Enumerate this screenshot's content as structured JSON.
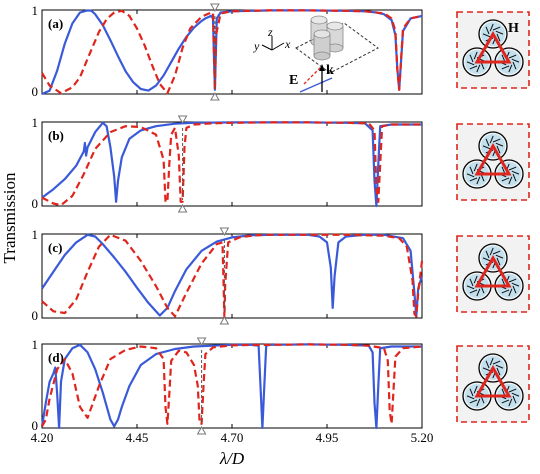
{
  "chart_data": {
    "type": "line",
    "xlabel": "λ/D",
    "ylabel": "Transmission",
    "xlim": [
      4.2,
      5.2
    ],
    "ylim": [
      0,
      1
    ],
    "x_ticks": [
      "4.20",
      "4.45",
      "4.70",
      "4.95",
      "5.20"
    ],
    "y_ticks": [
      "0",
      "1"
    ],
    "colors": {
      "solid": "#3a5bd9",
      "dashed": "#e0251d"
    },
    "panels": [
      {
        "label": "(a)",
        "markers_x": [
          4.655
        ],
        "series": [
          {
            "style": "solid",
            "x": [
              4.2,
              4.22,
              4.24,
              4.26,
              4.28,
              4.3,
              4.32,
              4.33,
              4.34,
              4.36,
              4.38,
              4.4,
              4.42,
              4.44,
              4.46,
              4.48,
              4.5,
              4.52,
              4.54,
              4.56,
              4.58,
              4.6,
              4.62,
              4.63,
              4.64,
              4.645,
              4.65,
              4.652,
              4.655,
              4.66,
              4.67,
              4.7,
              4.75,
              4.8,
              4.9,
              5.0,
              5.05,
              5.08,
              5.1,
              5.12,
              5.13,
              5.135,
              5.14,
              5.15,
              5.17,
              5.2
            ],
            "y": [
              0.0,
              0.04,
              0.28,
              0.6,
              0.84,
              0.97,
              0.995,
              0.99,
              0.95,
              0.82,
              0.64,
              0.45,
              0.27,
              0.14,
              0.06,
              0.04,
              0.1,
              0.22,
              0.38,
              0.54,
              0.68,
              0.79,
              0.87,
              0.9,
              0.92,
              0.93,
              0.9,
              0.5,
              0.05,
              0.9,
              0.97,
              0.985,
              0.99,
              0.995,
              0.995,
              0.99,
              0.985,
              0.97,
              0.95,
              0.88,
              0.7,
              0.3,
              0.05,
              0.75,
              0.9,
              0.93
            ]
          },
          {
            "style": "dashed",
            "x": [
              4.2,
              4.22,
              4.25,
              4.28,
              4.3,
              4.32,
              4.35,
              4.37,
              4.39,
              4.41,
              4.43,
              4.45,
              4.47,
              4.49,
              4.51,
              4.53,
              4.55,
              4.57,
              4.59,
              4.62,
              4.64,
              4.65,
              4.652,
              4.655,
              4.658,
              4.67,
              4.7,
              4.75,
              4.8,
              4.9,
              5.0,
              5.05,
              5.1,
              5.12,
              5.13,
              5.135,
              5.14,
              5.15,
              5.17,
              5.2
            ],
            "y": [
              0.25,
              0.1,
              0.01,
              0.08,
              0.2,
              0.42,
              0.74,
              0.89,
              0.97,
              0.99,
              0.93,
              0.78,
              0.58,
              0.34,
              0.12,
              0.01,
              0.22,
              0.55,
              0.78,
              0.92,
              0.96,
              0.97,
              0.6,
              0.05,
              0.7,
              0.96,
              0.985,
              0.99,
              0.995,
              0.995,
              0.99,
              0.985,
              0.96,
              0.9,
              0.75,
              0.3,
              0.05,
              0.78,
              0.9,
              0.93
            ]
          }
        ]
      },
      {
        "label": "(b)",
        "markers_x": [
          4.57
        ],
        "series": [
          {
            "style": "solid",
            "x": [
              4.2,
              4.23,
              4.26,
              4.29,
              4.31,
              4.313,
              4.316,
              4.32,
              4.34,
              4.36,
              4.37,
              4.38,
              4.39,
              4.395,
              4.4,
              4.41,
              4.43,
              4.46,
              4.5,
              4.55,
              4.6,
              4.7,
              4.8,
              4.9,
              5.0,
              5.05,
              5.07,
              5.075,
              5.08,
              5.085,
              5.09,
              5.12,
              5.2
            ],
            "y": [
              0.1,
              0.2,
              0.32,
              0.48,
              0.65,
              0.75,
              0.6,
              0.7,
              0.88,
              0.99,
              0.95,
              0.7,
              0.35,
              0.05,
              0.3,
              0.58,
              0.8,
              0.9,
              0.95,
              0.98,
              0.99,
              0.995,
              0.995,
              0.995,
              0.99,
              0.985,
              0.9,
              0.3,
              0.0,
              0.5,
              0.95,
              0.97,
              0.97
            ]
          },
          {
            "style": "dashed",
            "x": [
              4.2,
              4.23,
              4.25,
              4.28,
              4.31,
              4.34,
              4.38,
              4.42,
              4.46,
              4.5,
              4.52,
              4.525,
              4.53,
              4.535,
              4.54,
              4.55,
              4.56,
              4.565,
              4.57,
              4.575,
              4.58,
              4.6,
              4.65,
              4.7,
              4.8,
              4.9,
              5.0,
              5.06,
              5.075,
              5.08,
              5.085,
              5.095,
              5.12,
              5.2
            ],
            "y": [
              0.1,
              0.03,
              0.01,
              0.12,
              0.38,
              0.68,
              0.88,
              0.95,
              0.94,
              0.85,
              0.55,
              0.05,
              0.05,
              0.5,
              0.85,
              0.93,
              0.6,
              0.05,
              0.05,
              0.7,
              0.93,
              0.97,
              0.985,
              0.99,
              0.995,
              0.995,
              0.99,
              0.985,
              0.9,
              0.2,
              0.05,
              0.95,
              0.97,
              0.97
            ]
          }
        ]
      },
      {
        "label": "(c)",
        "markers_x": [
          4.68
        ],
        "series": [
          {
            "style": "solid",
            "x": [
              4.2,
              4.23,
              4.26,
              4.29,
              4.32,
              4.34,
              4.36,
              4.39,
              4.42,
              4.45,
              4.48,
              4.51,
              4.53,
              4.55,
              4.58,
              4.62,
              4.66,
              4.7,
              4.75,
              4.8,
              4.85,
              4.9,
              4.93,
              4.95,
              4.96,
              4.965,
              4.97,
              4.98,
              5.0,
              5.05,
              5.1,
              5.15,
              5.17,
              5.18,
              5.185,
              5.19,
              5.2
            ],
            "y": [
              0.35,
              0.55,
              0.75,
              0.9,
              0.99,
              0.97,
              0.88,
              0.72,
              0.55,
              0.36,
              0.18,
              0.03,
              0.12,
              0.32,
              0.58,
              0.8,
              0.91,
              0.96,
              0.985,
              0.99,
              0.99,
              0.99,
              0.97,
              0.9,
              0.6,
              0.12,
              0.5,
              0.9,
              0.97,
              0.99,
              0.99,
              0.95,
              0.8,
              0.3,
              0.02,
              0.35,
              0.5
            ]
          },
          {
            "style": "dashed",
            "x": [
              4.2,
              4.23,
              4.26,
              4.29,
              4.32,
              4.35,
              4.38,
              4.42,
              4.46,
              4.5,
              4.53,
              4.55,
              4.58,
              4.62,
              4.66,
              4.675,
              4.678,
              4.68,
              4.682,
              4.69,
              4.72,
              4.76,
              4.8,
              4.9,
              5.0,
              5.1,
              5.14,
              5.16,
              5.175,
              5.18,
              5.185,
              5.19,
              5.2
            ],
            "y": [
              0.2,
              0.08,
              0.06,
              0.22,
              0.55,
              0.85,
              0.99,
              0.92,
              0.68,
              0.38,
              0.12,
              0.02,
              0.3,
              0.65,
              0.88,
              0.9,
              0.4,
              0.0,
              0.4,
              0.9,
              0.96,
              0.985,
              0.99,
              0.99,
              0.99,
              0.98,
              0.95,
              0.85,
              0.45,
              0.05,
              0.02,
              0.3,
              0.68
            ]
          }
        ]
      },
      {
        "label": "(d)",
        "markers_x": [
          4.62
        ],
        "series": [
          {
            "style": "solid",
            "x": [
              4.2,
              4.21,
              4.22,
              4.23,
              4.235,
              4.24,
              4.245,
              4.25,
              4.26,
              4.28,
              4.3,
              4.32,
              4.34,
              4.36,
              4.38,
              4.39,
              4.4,
              4.41,
              4.43,
              4.46,
              4.5,
              4.55,
              4.6,
              4.65,
              4.7,
              4.75,
              4.77,
              4.775,
              4.78,
              4.785,
              4.79,
              4.8,
              4.9,
              5.0,
              5.06,
              5.07,
              5.075,
              5.08,
              5.085,
              5.09,
              5.12,
              5.2
            ],
            "y": [
              0.02,
              0.3,
              0.55,
              0.65,
              0.72,
              0.4,
              0.0,
              0.55,
              0.82,
              0.95,
              0.99,
              0.9,
              0.7,
              0.42,
              0.1,
              0.02,
              0.1,
              0.25,
              0.5,
              0.75,
              0.88,
              0.94,
              0.97,
              0.98,
              0.99,
              0.99,
              0.98,
              0.5,
              0.0,
              0.5,
              0.98,
              0.99,
              0.995,
              0.99,
              0.98,
              0.9,
              0.3,
              0.0,
              0.5,
              0.95,
              0.97,
              0.97
            ]
          },
          {
            "style": "dashed",
            "x": [
              4.2,
              4.21,
              4.22,
              4.24,
              4.26,
              4.28,
              4.3,
              4.32,
              4.35,
              4.38,
              4.42,
              4.46,
              4.5,
              4.52,
              4.525,
              4.53,
              4.535,
              4.54,
              4.56,
              4.58,
              4.6,
              4.61,
              4.615,
              4.62,
              4.625,
              4.63,
              4.65,
              4.7,
              4.8,
              4.9,
              5.0,
              5.06,
              5.1,
              5.11,
              5.115,
              5.12,
              5.13,
              5.15,
              5.2
            ],
            "y": [
              0.02,
              0.1,
              0.35,
              0.7,
              0.82,
              0.65,
              0.25,
              0.12,
              0.5,
              0.82,
              0.93,
              0.97,
              0.95,
              0.82,
              0.25,
              0.05,
              0.4,
              0.8,
              0.92,
              0.9,
              0.75,
              0.5,
              0.05,
              0.05,
              0.5,
              0.88,
              0.96,
              0.985,
              0.99,
              0.995,
              0.99,
              0.98,
              0.95,
              0.8,
              0.2,
              0.05,
              0.85,
              0.95,
              0.97
            ]
          }
        ]
      }
    ]
  },
  "inset": {
    "axes": [
      "z",
      "y",
      "x"
    ],
    "wave_labels": [
      "E",
      "k"
    ],
    "field_label": "H"
  }
}
